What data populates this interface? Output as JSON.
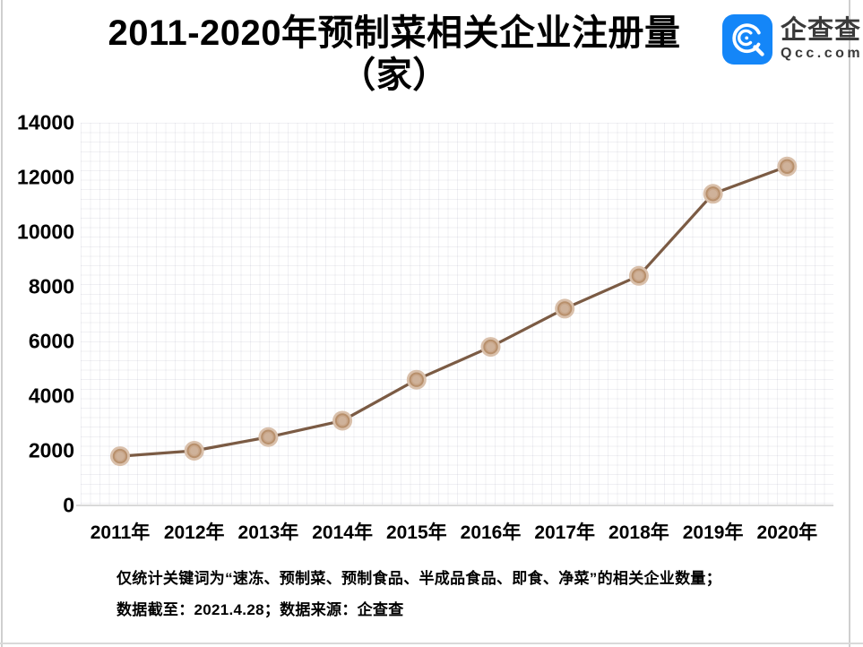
{
  "header": {
    "title_line1": "2011-2020年预制菜相关企业注册量",
    "title_line2": "（家）",
    "logo": {
      "icon": "qcc-magnifier-logo",
      "name": "企查查",
      "domain": "Qcc.com",
      "brand_color": "#1486f8",
      "text_color": "#3a3a3a"
    }
  },
  "chart_data": {
    "type": "line",
    "title": "2011-2020年预制菜相关企业注册量（家）",
    "categories": [
      "2011年",
      "2012年",
      "2013年",
      "2014年",
      "2015年",
      "2016年",
      "2017年",
      "2018年",
      "2019年",
      "2020年"
    ],
    "values": [
      1800,
      2000,
      2500,
      3100,
      4600,
      5800,
      7200,
      8400,
      11400,
      12400
    ],
    "xlabel": "",
    "ylabel": "",
    "ylim": [
      0,
      14000
    ],
    "yticks": [
      0,
      2000,
      4000,
      6000,
      8000,
      10000,
      12000,
      14000
    ],
    "grid": "dotted-both",
    "legend": "none",
    "line_color": "#7b5b44",
    "marker": {
      "halo_color": "#d9c0ab",
      "ring_color": "#b8906c",
      "fill_color": "#c9a78b",
      "center_color": "#cfb29a"
    }
  },
  "footnote": {
    "line1": "仅统计关键词为“速冻、预制菜、预制食品、半成品食品、即食、净菜”的相关企业数量；",
    "line2": "数据截至：2021.4.28；数据来源：企查查"
  }
}
